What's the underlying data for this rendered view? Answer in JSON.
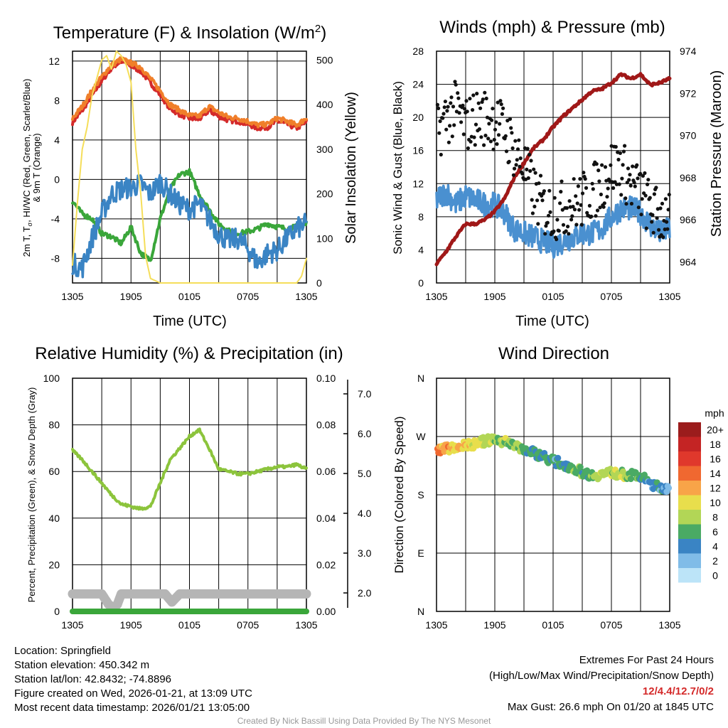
{
  "chart_data": [
    {
      "id": "temp",
      "type": "line",
      "title_main": "Temperature (F) & Insolation (W/m",
      "title_sup": "2",
      "title_tail": ")",
      "xlabel": "Time (UTC)",
      "ylabel_line1": "2m T, T",
      "ylabel_sub": "σ",
      "ylabel_line1_tail": ", HI/WC (Red, Green, Scarlet/Blue)",
      "ylabel_line2": "& 9m T (Orange)",
      "ylabel_right": "Solar Insolation (Yellow)",
      "x_ticks": [
        "1305",
        "1905",
        "0105",
        "0705",
        "1305"
      ],
      "x_range_hours": [
        0,
        24
      ],
      "ylim": [
        -10.5,
        13
      ],
      "yticks": [
        12,
        8,
        4,
        0,
        -4,
        -8
      ],
      "ylim_right": [
        0,
        520
      ],
      "yticks_right": [
        0,
        100,
        200,
        300,
        400,
        500
      ],
      "series": [
        {
          "name": "2m T",
          "color": "#d42a2a",
          "x": [
            0,
            1,
            2,
            3,
            4,
            5,
            6,
            7,
            8,
            9,
            10,
            11,
            12,
            13,
            14,
            15,
            16,
            17,
            18,
            19,
            20,
            21,
            22,
            23,
            24
          ],
          "values": [
            5.8,
            7,
            8.5,
            10,
            11.3,
            12,
            11.5,
            11,
            9.8,
            8.6,
            7.2,
            6.6,
            6.2,
            6.1,
            7,
            6.4,
            6,
            5.9,
            5.6,
            5.2,
            5.3,
            5.9,
            5.6,
            5.2,
            5.8
          ]
        },
        {
          "name": "9m T",
          "color": "#f07f2a",
          "x": [
            0,
            1,
            2,
            3,
            4,
            5,
            6,
            7,
            8,
            9,
            10,
            11,
            12,
            13,
            14,
            15,
            16,
            17,
            18,
            19,
            20,
            21,
            22,
            23,
            24
          ],
          "values": [
            6.2,
            7.4,
            9,
            10.4,
            11.6,
            12.2,
            11.8,
            11.4,
            10.2,
            9,
            7.6,
            7,
            6.5,
            6.4,
            7.4,
            6.8,
            6.3,
            6.2,
            5.9,
            5.5,
            5.6,
            6.2,
            5.9,
            5.5,
            6.2
          ]
        },
        {
          "name": "Tσ",
          "color": "#3aa63a",
          "x": [
            0,
            1,
            2,
            3,
            4,
            5,
            6,
            7,
            8,
            9,
            10,
            11,
            12,
            13,
            14,
            15,
            16,
            17,
            18,
            19,
            20,
            21,
            22,
            23,
            24
          ],
          "values": [
            -2.2,
            -3.5,
            -4,
            -5.5,
            -5.8,
            -6.5,
            -4.8,
            -7.5,
            -8.2,
            -4,
            -1,
            0.5,
            0.8,
            -1.5,
            -3,
            -4.5,
            -5.2,
            -5.5,
            -5.3,
            -5,
            -4.5,
            -4.8,
            -5,
            -4.8,
            -4.5
          ]
        },
        {
          "name": "HI/WC",
          "color": "#3a84c4",
          "x": [
            0,
            1,
            2,
            3,
            4,
            5,
            6,
            7,
            8,
            9,
            10,
            11,
            12,
            13,
            14,
            15,
            16,
            17,
            18,
            19,
            20,
            21,
            22,
            23,
            24
          ],
          "values": [
            -8.5,
            -9,
            -6,
            -3.5,
            -1.5,
            -1,
            -0.8,
            -0.5,
            -1.5,
            -0.2,
            -1.5,
            -2.5,
            -3,
            -2.5,
            -4,
            -5.5,
            -6.2,
            -6,
            -7,
            -8.5,
            -7.5,
            -7.2,
            -6,
            -5,
            -4.5
          ]
        },
        {
          "name": "Solar Insolation",
          "axis": "right",
          "color": "#f5de5a",
          "x": [
            0,
            0.5,
            1,
            1.5,
            2,
            2.5,
            3,
            3.5,
            4,
            4.5,
            5,
            5.5,
            6,
            6.5,
            7,
            7.5,
            8,
            9,
            12,
            18,
            22,
            23,
            23.5,
            24
          ],
          "values": [
            40,
            180,
            300,
            350,
            420,
            460,
            500,
            510,
            480,
            520,
            510,
            490,
            450,
            300,
            200,
            60,
            10,
            0,
            0,
            0,
            0,
            0,
            15,
            55
          ]
        }
      ]
    },
    {
      "id": "winds",
      "type": "scatter",
      "title": "Winds (mph) & Pressure (mb)",
      "xlabel": "Time (UTC)",
      "ylabel": "Sonic Wind & Gust (Blue, Black)",
      "ylabel_right": "Station Pressure (Maroon)",
      "x_ticks": [
        "1305",
        "1905",
        "0105",
        "0705",
        "1305"
      ],
      "x_range_hours": [
        0,
        24
      ],
      "ylim": [
        0,
        28
      ],
      "yticks": [
        0,
        4,
        8,
        12,
        16,
        20,
        24,
        28
      ],
      "ylim_right": [
        963,
        974
      ],
      "yticks_right": [
        964,
        966,
        968,
        970,
        972,
        974
      ],
      "series": [
        {
          "name": "Sonic Wind",
          "color": "#4a90d0",
          "x": [
            0,
            1,
            2,
            3,
            4,
            5,
            6,
            7,
            8,
            9,
            10,
            11,
            12,
            13,
            14,
            15,
            16,
            17,
            18,
            19,
            20,
            21,
            22,
            23,
            24
          ],
          "values": [
            10,
            11,
            9.5,
            10.5,
            10,
            9.5,
            9.5,
            8.5,
            6.5,
            6,
            5.5,
            5,
            4.5,
            5,
            5.5,
            6,
            6,
            6.5,
            8,
            9,
            9,
            8.5,
            7,
            6,
            6.5
          ]
        },
        {
          "name": "Gust",
          "color": "#111111",
          "x": [
            0,
            1,
            2,
            3,
            4,
            5,
            6,
            7,
            8,
            9,
            10,
            11,
            12,
            13,
            14,
            15,
            16,
            17,
            18,
            19,
            20,
            21,
            22,
            23,
            24
          ],
          "values": [
            18,
            20,
            21,
            19,
            20,
            20,
            19.5,
            18.5,
            16,
            14,
            11,
            9,
            8.5,
            9,
            9.5,
            10,
            11,
            12,
            14,
            14,
            12,
            11,
            9,
            8,
            9
          ]
        },
        {
          "name": "Station Pressure",
          "axis": "right",
          "color": "#a01818",
          "x": [
            0,
            1,
            2,
            3,
            4,
            5,
            6,
            7,
            8,
            9,
            10,
            11,
            12,
            13,
            14,
            15,
            16,
            17,
            18,
            19,
            20,
            21,
            22,
            23,
            24
          ],
          "values": [
            963.9,
            964.5,
            965.2,
            965.8,
            965.8,
            966,
            966.4,
            967,
            968,
            968.7,
            969.4,
            969.8,
            970.4,
            970.9,
            971.3,
            971.7,
            972.1,
            972.2,
            972.5,
            972.9,
            972.7,
            972.9,
            972.4,
            972.5,
            972.7
          ]
        }
      ]
    },
    {
      "id": "rh",
      "type": "line",
      "title": "Relative Humidity (%) & Precipitation (in)",
      "ylabel": "Percent, Precipitation (Green), & Snow Depth (Gray)",
      "x_ticks": [
        "1305",
        "1905",
        "0105",
        "0705",
        "1305"
      ],
      "x_range_hours": [
        0,
        24
      ],
      "ylim": [
        0,
        100
      ],
      "yticks": [
        0,
        20,
        40,
        60,
        80,
        100
      ],
      "ylim_right": [
        0,
        0.1
      ],
      "yticks_right": [
        "0.00",
        "0.02",
        "0.04",
        "0.06",
        "0.08",
        "0.10"
      ],
      "snow_axis_ticks": [
        "2.0",
        "3.0",
        "4.0",
        "5.0",
        "6.0",
        "7.0"
      ],
      "series": [
        {
          "name": "Relative Humidity",
          "color": "#8cc43c",
          "x": [
            0,
            1,
            2,
            3,
            4,
            5,
            6,
            7,
            8,
            9,
            10,
            11,
            12,
            13,
            14,
            15,
            16,
            17,
            18,
            19,
            20,
            21,
            22,
            23,
            24
          ],
          "values": [
            69,
            65,
            60,
            55,
            50,
            46,
            45,
            44,
            45,
            55,
            65,
            70,
            75,
            78,
            70,
            61,
            60,
            59,
            59,
            60,
            61,
            62,
            62,
            63,
            61
          ]
        },
        {
          "name": "Snow Depth",
          "color": "#b5b5b5",
          "x": [
            0,
            1,
            3,
            3.7,
            4.2,
            4.6,
            5,
            6,
            8,
            9.5,
            10.2,
            11,
            12,
            24
          ],
          "values": [
            7.5,
            7.5,
            7.5,
            3,
            1.5,
            3,
            7.5,
            7.5,
            7.5,
            7.5,
            4,
            7.5,
            7.5,
            7.5
          ]
        },
        {
          "name": "Precipitation",
          "color": "#3aa63a",
          "x": [
            0,
            24
          ],
          "values": [
            0,
            0
          ]
        }
      ]
    },
    {
      "id": "wdir",
      "type": "scatter",
      "title": "Wind Direction",
      "ylabel": "Direction (Colored By Speed)",
      "x_ticks": [
        "1305",
        "1905",
        "0105",
        "0705",
        "1305"
      ],
      "x_range_hours": [
        0,
        24
      ],
      "y_ticks": [
        "N",
        "E",
        "S",
        "W",
        "N"
      ],
      "ylim_deg": [
        0,
        360
      ],
      "colorbar_title": "mph",
      "colorbar": [
        {
          "label": "20+",
          "color": "#9b1c1c"
        },
        {
          "label": "18",
          "color": "#c42424"
        },
        {
          "label": "16",
          "color": "#e0382c"
        },
        {
          "label": "14",
          "color": "#f06830"
        },
        {
          "label": "12",
          "color": "#f8a448"
        },
        {
          "label": "10",
          "color": "#e8de4c"
        },
        {
          "label": "8",
          "color": "#b2d656"
        },
        {
          "label": "6",
          "color": "#4aaa64"
        },
        {
          "label": "4",
          "color": "#3a84c4"
        },
        {
          "label": "2",
          "color": "#80bce8"
        },
        {
          "label": "0",
          "color": "#bce4f8"
        }
      ],
      "series": [
        {
          "name": "Direction",
          "x": [
            0,
            1,
            2,
            3,
            4,
            5,
            6,
            7,
            8,
            9,
            10,
            11,
            12,
            13,
            14,
            15,
            16,
            17,
            18,
            19,
            20,
            21,
            22,
            23,
            24
          ],
          "values": [
            250,
            252,
            254,
            257,
            258,
            263,
            265,
            262,
            258,
            250,
            245,
            240,
            232,
            228,
            222,
            215,
            210,
            212,
            214,
            212,
            210,
            208,
            198,
            190,
            192
          ],
          "speeds": [
            12,
            12,
            11,
            11,
            10,
            9,
            8,
            8,
            7,
            6,
            5,
            5,
            4,
            5,
            6,
            6,
            6,
            8,
            8,
            8,
            7,
            6,
            4,
            4,
            3
          ]
        }
      ]
    }
  ],
  "info": {
    "location": "Location: Springfield",
    "elevation": "Station elevation: 450.342 m",
    "latlon": "Station lat/lon: 42.8432; -74.8896",
    "created": "Figure created on Wed, 2026-01-21, at 13:09 UTC",
    "recent": "Most recent data timestamp: 2026/01/21 13:05:00"
  },
  "extremes": {
    "title": "Extremes For Past 24 Hours",
    "subtitle": "(High/Low/Max Wind/Precipitation/Snow Depth)",
    "values": "12/4.4/12.7/0/2",
    "gust": "Max Gust: 26.6 mph On 01/20 at 1845 UTC"
  },
  "credit": "Created By Nick Bassill Using Data Provided By The NYS Mesonet"
}
